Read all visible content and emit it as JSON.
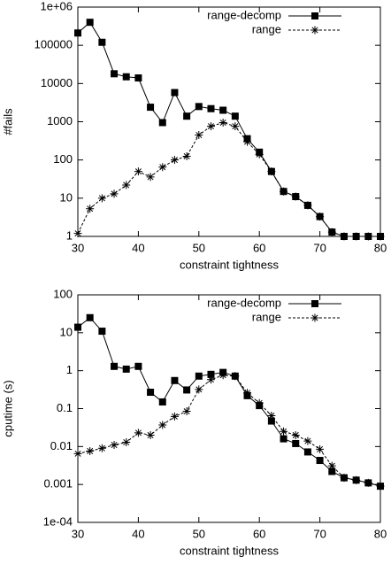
{
  "chart_data": [
    {
      "type": "line",
      "xlabel": "constraint tightness",
      "ylabel": "#fails",
      "log_y": true,
      "legend": "top-right",
      "x": [
        30,
        32,
        34,
        36,
        38,
        40,
        42,
        44,
        46,
        48,
        50,
        52,
        54,
        56,
        58,
        60,
        62,
        64,
        66,
        68,
        70,
        72,
        74,
        76,
        78,
        80
      ],
      "series": [
        {
          "name": "range-decomp",
          "color": "#000000",
          "line_style": "solid",
          "marker": "square",
          "values": [
            210000,
            400000,
            120000,
            18000,
            15000,
            14000,
            2400,
            950,
            5800,
            1400,
            2500,
            2200,
            2000,
            1400,
            360,
            160,
            50,
            15,
            11,
            6.5,
            3.3,
            1.3,
            1,
            1,
            1,
            1
          ]
        },
        {
          "name": "range",
          "color": "#000000",
          "line_style": "dashed",
          "marker": "star",
          "values": [
            1.2,
            5.3,
            10,
            13,
            22,
            50,
            36,
            65,
            100,
            125,
            450,
            760,
            950,
            760,
            300,
            140,
            50,
            15,
            11,
            6.5,
            3.3,
            1.3,
            1,
            1,
            1,
            1
          ]
        }
      ],
      "xlim": [
        30,
        80
      ],
      "xticks": [
        30,
        40,
        50,
        60,
        70,
        80
      ],
      "ylim": [
        1,
        1000000
      ],
      "yticks": [
        1,
        10,
        100,
        1000,
        10000,
        100000,
        {
          "value": 1000000,
          "label": "1e+06"
        }
      ]
    },
    {
      "type": "line",
      "xlabel": "constraint tightness",
      "ylabel": "cputime (s)",
      "log_y": true,
      "legend": "top-right",
      "x": [
        30,
        32,
        34,
        36,
        38,
        40,
        42,
        44,
        46,
        48,
        50,
        52,
        54,
        56,
        58,
        60,
        62,
        64,
        66,
        68,
        70,
        72,
        74,
        76,
        78,
        80
      ],
      "series": [
        {
          "name": "range-decomp",
          "color": "#000000",
          "line_style": "solid",
          "marker": "square",
          "values": [
            14,
            25,
            11,
            1.3,
            1.1,
            1.3,
            0.27,
            0.15,
            0.55,
            0.31,
            0.72,
            0.8,
            0.9,
            0.72,
            0.22,
            0.12,
            0.047,
            0.016,
            0.012,
            0.0072,
            0.0043,
            0.0022,
            0.0015,
            0.0013,
            0.0011,
            0.0009
          ]
        },
        {
          "name": "range",
          "color": "#000000",
          "line_style": "dashed",
          "marker": "star",
          "values": [
            0.0065,
            0.0076,
            0.009,
            0.011,
            0.013,
            0.023,
            0.02,
            0.037,
            0.062,
            0.085,
            0.32,
            0.58,
            0.76,
            0.72,
            0.26,
            0.14,
            0.065,
            0.025,
            0.02,
            0.014,
            0.0085,
            0.0031,
            0.0015,
            0.0013,
            0.0011,
            0.0009
          ]
        }
      ],
      "xlim": [
        30,
        80
      ],
      "xticks": [
        30,
        40,
        50,
        60,
        70,
        80
      ],
      "ylim": [
        0.0001,
        100
      ],
      "yticks": [
        {
          "value": 0.0001,
          "label": "1e-04"
        },
        0.001,
        0.01,
        0.1,
        1,
        10,
        100
      ]
    }
  ]
}
